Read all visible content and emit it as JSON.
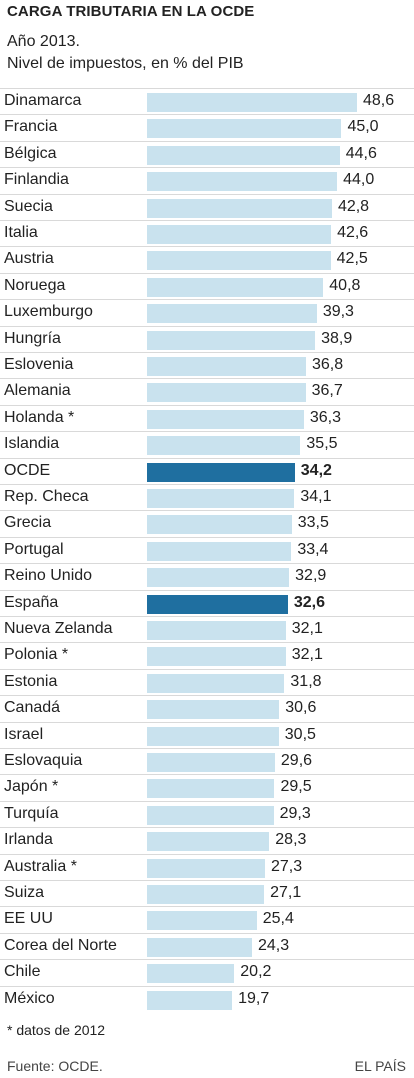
{
  "title": "CARGA TRIBUTARIA EN LA OCDE",
  "subtitle_line1": "Año 2013.",
  "subtitle_line2": "Nivel de impuestos, en % del PIB",
  "footnote": "* datos de 2012",
  "source": "Fuente: OCDE.",
  "brand": "EL PAÍS",
  "colors": {
    "bar": "#c9e2ee",
    "highlight": "#1f6fa0"
  },
  "chart_data": {
    "type": "bar",
    "orientation": "horizontal",
    "title": "CARGA TRIBUTARIA EN LA OCDE",
    "categories": [
      "Dinamarca",
      "Francia",
      "Bélgica",
      "Finlandia",
      "Suecia",
      "Italia",
      "Austria",
      "Noruega",
      "Luxemburgo",
      "Hungría",
      "Eslovenia",
      "Alemania",
      "Holanda *",
      "Islandia",
      "OCDE",
      "Rep. Checa",
      "Grecia",
      "Portugal",
      "Reino Unido",
      "España",
      "Nueva Zelanda",
      "Polonia *",
      "Estonia",
      "Canadá",
      "Israel",
      "Eslovaquia",
      "Japón *",
      "Turquía",
      "Irlanda",
      "Australia *",
      "Suiza",
      "EE UU",
      "Corea del Norte",
      "Chile",
      "México"
    ],
    "values": [
      48.6,
      45.0,
      44.6,
      44.0,
      42.8,
      42.6,
      42.5,
      40.8,
      39.3,
      38.9,
      36.8,
      36.7,
      36.3,
      35.5,
      34.2,
      34.1,
      33.5,
      33.4,
      32.9,
      32.6,
      32.1,
      32.1,
      31.8,
      30.6,
      30.5,
      29.6,
      29.5,
      29.3,
      28.3,
      27.3,
      27.1,
      25.4,
      24.3,
      20.2,
      19.7
    ],
    "value_labels": [
      "48,6",
      "45,0",
      "44,6",
      "44,0",
      "42,8",
      "42,6",
      "42,5",
      "40,8",
      "39,3",
      "38,9",
      "36,8",
      "36,7",
      "36,3",
      "35,5",
      "34,2",
      "34,1",
      "33,5",
      "33,4",
      "32,9",
      "32,6",
      "32,1",
      "32,1",
      "31,8",
      "30,6",
      "30,5",
      "29,6",
      "29,5",
      "29,3",
      "28,3",
      "27,3",
      "27,1",
      "25,4",
      "24,3",
      "20,2",
      "19,7"
    ],
    "highlighted": [
      "OCDE",
      "España"
    ],
    "xlim": [
      0,
      48.6
    ],
    "grid": false,
    "legend": "none"
  }
}
